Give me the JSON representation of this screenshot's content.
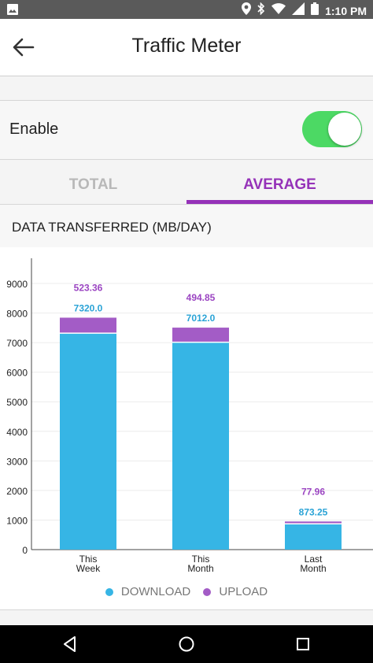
{
  "status_bar": {
    "time": "1:10 PM",
    "icons": [
      "image-icon",
      "location-icon",
      "bluetooth-icon",
      "wifi-icon",
      "signal-icon",
      "battery-icon"
    ]
  },
  "header": {
    "title": "Traffic Meter",
    "back_icon": "back-arrow-icon"
  },
  "enable": {
    "label": "Enable",
    "toggle_on": true,
    "toggle_color": "#4cd964"
  },
  "tabs": [
    {
      "label": "TOTAL",
      "selected": false
    },
    {
      "label": "AVERAGE",
      "selected": true
    }
  ],
  "accent_color": "#9532b8",
  "section": {
    "title": "DATA TRANSFERRED (MB/DAY)"
  },
  "chart_data": {
    "type": "bar",
    "stacked": true,
    "categories": [
      [
        "This",
        "Week"
      ],
      [
        "This",
        "Month"
      ],
      [
        "Last",
        "Month"
      ]
    ],
    "series": [
      {
        "name": "DOWNLOAD",
        "color": "#36b5e5",
        "values": [
          7320.0,
          7012.0,
          873.25
        ],
        "labels": [
          "7320.0",
          "7012.0",
          "873.25"
        ]
      },
      {
        "name": "UPLOAD",
        "color": "#a35cc6",
        "values": [
          523.36,
          494.85,
          77.96
        ],
        "labels": [
          "523.36",
          "494.85",
          "77.96"
        ]
      }
    ],
    "yticks": [
      "0",
      "1000",
      "2000",
      "3000",
      "4000",
      "5000",
      "6000",
      "7000",
      "8000",
      "9000"
    ],
    "ylim": [
      0,
      9000
    ],
    "grid": true,
    "legend": "bottom"
  },
  "nav": {
    "icons": [
      "nav-back-icon",
      "nav-home-icon",
      "nav-recents-icon"
    ]
  }
}
